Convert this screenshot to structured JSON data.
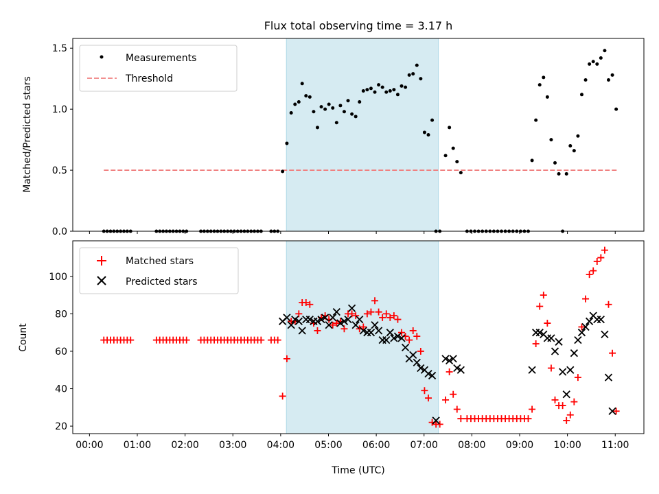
{
  "chart_data": {
    "type": "scatter",
    "title": "Flux total observing time = 3.17 h",
    "xlabel": "Time (UTC)",
    "xlim": [
      -0.35,
      11.6
    ],
    "x_ticks": [
      0,
      1,
      2,
      3,
      4,
      5,
      6,
      7,
      8,
      9,
      10,
      11
    ],
    "x_tick_labels": [
      "00:00",
      "01:00",
      "02:00",
      "03:00",
      "04:00",
      "05:00",
      "06:00",
      "07:00",
      "08:00",
      "09:00",
      "10:00",
      "11:00"
    ],
    "highlight_span": [
      4.12,
      7.3
    ],
    "colors": {
      "measurement": "#000000",
      "threshold": "#f08080",
      "matched": "#ff0000",
      "predicted": "#000000",
      "span": "#add8e6"
    },
    "top": {
      "ylabel": "Matched/Predicted stars",
      "ylim": [
        0,
        1.58
      ],
      "y_ticks": [
        0.0,
        0.5,
        1.0,
        1.5
      ],
      "y_tick_labels": [
        "0.0",
        "0.5",
        "1.0",
        "1.5"
      ],
      "legend": {
        "location": "top-left",
        "measurements_label": "Measurements",
        "threshold_label": "Threshold"
      },
      "threshold": {
        "value": 0.5,
        "x_range": [
          0.3,
          11.05
        ]
      },
      "measurements": [
        [
          0.3,
          0
        ],
        [
          0.37,
          0
        ],
        [
          0.44,
          0
        ],
        [
          0.51,
          0
        ],
        [
          0.58,
          0
        ],
        [
          0.65,
          0
        ],
        [
          0.72,
          0
        ],
        [
          0.79,
          0
        ],
        [
          0.86,
          0
        ],
        [
          1.4,
          0
        ],
        [
          1.47,
          0
        ],
        [
          1.54,
          0
        ],
        [
          1.61,
          0
        ],
        [
          1.68,
          0
        ],
        [
          1.75,
          0
        ],
        [
          1.82,
          0
        ],
        [
          1.89,
          0
        ],
        [
          1.96,
          0
        ],
        [
          2.03,
          0
        ],
        [
          2.33,
          0
        ],
        [
          2.4,
          0
        ],
        [
          2.47,
          0
        ],
        [
          2.54,
          0
        ],
        [
          2.61,
          0
        ],
        [
          2.68,
          0
        ],
        [
          2.75,
          0
        ],
        [
          2.82,
          0
        ],
        [
          2.89,
          0
        ],
        [
          2.96,
          0
        ],
        [
          3.03,
          0
        ],
        [
          3.1,
          0
        ],
        [
          3.17,
          0
        ],
        [
          3.24,
          0
        ],
        [
          3.31,
          0
        ],
        [
          3.38,
          0
        ],
        [
          3.45,
          0
        ],
        [
          3.52,
          0
        ],
        [
          3.59,
          0
        ],
        [
          3.8,
          0
        ],
        [
          3.87,
          0
        ],
        [
          3.94,
          0
        ],
        [
          4.04,
          0.49
        ],
        [
          4.13,
          0.72
        ],
        [
          4.22,
          0.97
        ],
        [
          4.3,
          1.04
        ],
        [
          4.38,
          1.06
        ],
        [
          4.45,
          1.21
        ],
        [
          4.53,
          1.11
        ],
        [
          4.61,
          1.1
        ],
        [
          4.69,
          0.98
        ],
        [
          4.77,
          0.85
        ],
        [
          4.85,
          1.02
        ],
        [
          4.93,
          1.0
        ],
        [
          5.01,
          1.04
        ],
        [
          5.09,
          1.01
        ],
        [
          5.17,
          0.89
        ],
        [
          5.25,
          1.03
        ],
        [
          5.33,
          0.98
        ],
        [
          5.41,
          1.07
        ],
        [
          5.49,
          0.96
        ],
        [
          5.57,
          0.94
        ],
        [
          5.65,
          1.06
        ],
        [
          5.73,
          1.15
        ],
        [
          5.81,
          1.16
        ],
        [
          5.89,
          1.17
        ],
        [
          5.97,
          1.14
        ],
        [
          6.05,
          1.2
        ],
        [
          6.13,
          1.18
        ],
        [
          6.21,
          1.14
        ],
        [
          6.29,
          1.15
        ],
        [
          6.37,
          1.16
        ],
        [
          6.45,
          1.12
        ],
        [
          6.53,
          1.19
        ],
        [
          6.61,
          1.18
        ],
        [
          6.69,
          1.28
        ],
        [
          6.77,
          1.29
        ],
        [
          6.85,
          1.36
        ],
        [
          6.93,
          1.25
        ],
        [
          7.01,
          0.81
        ],
        [
          7.09,
          0.79
        ],
        [
          7.17,
          0.91
        ],
        [
          7.25,
          0
        ],
        [
          7.33,
          0
        ],
        [
          7.45,
          0.62
        ],
        [
          7.53,
          0.85
        ],
        [
          7.61,
          0.68
        ],
        [
          7.69,
          0.57
        ],
        [
          7.77,
          0.48
        ],
        [
          7.9,
          0
        ],
        [
          7.98,
          0
        ],
        [
          8.06,
          0
        ],
        [
          8.14,
          0
        ],
        [
          8.22,
          0
        ],
        [
          8.3,
          0
        ],
        [
          8.38,
          0
        ],
        [
          8.46,
          0
        ],
        [
          8.54,
          0
        ],
        [
          8.62,
          0
        ],
        [
          8.7,
          0
        ],
        [
          8.78,
          0
        ],
        [
          8.86,
          0
        ],
        [
          8.94,
          0
        ],
        [
          9.02,
          0
        ],
        [
          9.1,
          0
        ],
        [
          9.18,
          0
        ],
        [
          9.26,
          0.58
        ],
        [
          9.34,
          0.91
        ],
        [
          9.42,
          1.2
        ],
        [
          9.5,
          1.26
        ],
        [
          9.58,
          1.1
        ],
        [
          9.66,
          0.75
        ],
        [
          9.74,
          0.56
        ],
        [
          9.82,
          0.47
        ],
        [
          9.9,
          0
        ],
        [
          9.98,
          0.47
        ],
        [
          10.06,
          0.7
        ],
        [
          10.14,
          0.66
        ],
        [
          10.22,
          0.78
        ],
        [
          10.3,
          1.12
        ],
        [
          10.38,
          1.24
        ],
        [
          10.46,
          1.37
        ],
        [
          10.54,
          1.39
        ],
        [
          10.62,
          1.37
        ],
        [
          10.7,
          1.42
        ],
        [
          10.78,
          1.48
        ],
        [
          10.86,
          1.24
        ],
        [
          10.94,
          1.28
        ],
        [
          11.02,
          1.0
        ]
      ]
    },
    "bottom": {
      "ylabel": "Count",
      "ylim": [
        16,
        119
      ],
      "y_ticks": [
        20,
        40,
        60,
        80,
        100
      ],
      "y_tick_labels": [
        "20",
        "40",
        "60",
        "80",
        "100"
      ],
      "legend": {
        "location": "top-left",
        "matched_label": "Matched stars",
        "predicted_label": "Predicted stars"
      },
      "matched": [
        [
          0.3,
          66
        ],
        [
          0.37,
          66
        ],
        [
          0.44,
          66
        ],
        [
          0.51,
          66
        ],
        [
          0.58,
          66
        ],
        [
          0.65,
          66
        ],
        [
          0.72,
          66
        ],
        [
          0.79,
          66
        ],
        [
          0.86,
          66
        ],
        [
          1.4,
          66
        ],
        [
          1.47,
          66
        ],
        [
          1.54,
          66
        ],
        [
          1.61,
          66
        ],
        [
          1.68,
          66
        ],
        [
          1.75,
          66
        ],
        [
          1.82,
          66
        ],
        [
          1.89,
          66
        ],
        [
          1.96,
          66
        ],
        [
          2.03,
          66
        ],
        [
          2.33,
          66
        ],
        [
          2.4,
          66
        ],
        [
          2.47,
          66
        ],
        [
          2.54,
          66
        ],
        [
          2.61,
          66
        ],
        [
          2.68,
          66
        ],
        [
          2.75,
          66
        ],
        [
          2.82,
          66
        ],
        [
          2.89,
          66
        ],
        [
          2.96,
          66
        ],
        [
          3.03,
          66
        ],
        [
          3.1,
          66
        ],
        [
          3.17,
          66
        ],
        [
          3.24,
          66
        ],
        [
          3.31,
          66
        ],
        [
          3.38,
          66
        ],
        [
          3.45,
          66
        ],
        [
          3.52,
          66
        ],
        [
          3.59,
          66
        ],
        [
          3.8,
          66
        ],
        [
          3.87,
          66
        ],
        [
          3.94,
          66
        ],
        [
          4.04,
          36
        ],
        [
          4.13,
          56
        ],
        [
          4.22,
          76
        ],
        [
          4.3,
          76
        ],
        [
          4.38,
          80
        ],
        [
          4.45,
          86
        ],
        [
          4.53,
          86
        ],
        [
          4.61,
          85
        ],
        [
          4.69,
          75
        ],
        [
          4.77,
          71
        ],
        [
          4.85,
          78
        ],
        [
          4.93,
          79
        ],
        [
          5.01,
          77
        ],
        [
          5.09,
          74
        ],
        [
          5.17,
          75
        ],
        [
          5.25,
          76
        ],
        [
          5.33,
          72
        ],
        [
          5.41,
          80
        ],
        [
          5.49,
          80
        ],
        [
          5.57,
          79
        ],
        [
          5.65,
          72
        ],
        [
          5.73,
          73
        ],
        [
          5.81,
          80
        ],
        [
          5.89,
          81
        ],
        [
          5.97,
          87
        ],
        [
          6.05,
          81
        ],
        [
          6.13,
          78
        ],
        [
          6.21,
          80
        ],
        [
          6.29,
          78
        ],
        [
          6.37,
          79
        ],
        [
          6.45,
          77
        ],
        [
          6.53,
          70
        ],
        [
          6.61,
          68
        ],
        [
          6.69,
          66
        ],
        [
          6.77,
          71
        ],
        [
          6.85,
          68
        ],
        [
          6.93,
          60
        ],
        [
          7.01,
          39
        ],
        [
          7.09,
          35
        ],
        [
          7.17,
          22
        ],
        [
          7.25,
          21
        ],
        [
          7.33,
          21
        ],
        [
          7.45,
          34
        ],
        [
          7.53,
          49
        ],
        [
          7.61,
          37
        ],
        [
          7.69,
          29
        ],
        [
          7.77,
          24
        ],
        [
          7.9,
          24
        ],
        [
          7.98,
          24
        ],
        [
          8.06,
          24
        ],
        [
          8.14,
          24
        ],
        [
          8.22,
          24
        ],
        [
          8.3,
          24
        ],
        [
          8.38,
          24
        ],
        [
          8.46,
          24
        ],
        [
          8.54,
          24
        ],
        [
          8.62,
          24
        ],
        [
          8.7,
          24
        ],
        [
          8.78,
          24
        ],
        [
          8.86,
          24
        ],
        [
          8.94,
          24
        ],
        [
          9.02,
          24
        ],
        [
          9.1,
          24
        ],
        [
          9.18,
          24
        ],
        [
          9.26,
          29
        ],
        [
          9.34,
          64
        ],
        [
          9.42,
          84
        ],
        [
          9.5,
          90
        ],
        [
          9.58,
          75
        ],
        [
          9.66,
          51
        ],
        [
          9.74,
          34
        ],
        [
          9.82,
          31
        ],
        [
          9.9,
          31
        ],
        [
          9.98,
          23
        ],
        [
          10.06,
          26
        ],
        [
          10.14,
          33
        ],
        [
          10.22,
          46
        ],
        [
          10.3,
          73
        ],
        [
          10.38,
          88
        ],
        [
          10.46,
          101
        ],
        [
          10.54,
          103
        ],
        [
          10.62,
          108
        ],
        [
          10.7,
          110
        ],
        [
          10.78,
          114
        ],
        [
          10.86,
          85
        ],
        [
          10.94,
          59
        ],
        [
          11.02,
          28
        ]
      ],
      "predicted": [
        [
          4.04,
          76
        ],
        [
          4.13,
          78
        ],
        [
          4.22,
          74
        ],
        [
          4.3,
          77
        ],
        [
          4.38,
          76
        ],
        [
          4.45,
          71
        ],
        [
          4.53,
          77
        ],
        [
          4.61,
          77
        ],
        [
          4.69,
          76
        ],
        [
          4.77,
          76
        ],
        [
          4.85,
          77
        ],
        [
          4.93,
          78
        ],
        [
          5.01,
          74
        ],
        [
          5.09,
          78
        ],
        [
          5.17,
          81
        ],
        [
          5.25,
          75
        ],
        [
          5.33,
          76
        ],
        [
          5.41,
          77
        ],
        [
          5.49,
          83
        ],
        [
          5.57,
          74
        ],
        [
          5.65,
          77
        ],
        [
          5.73,
          71
        ],
        [
          5.81,
          70
        ],
        [
          5.89,
          70
        ],
        [
          5.97,
          74
        ],
        [
          6.05,
          71
        ],
        [
          6.13,
          66
        ],
        [
          6.21,
          66
        ],
        [
          6.29,
          70
        ],
        [
          6.37,
          67
        ],
        [
          6.45,
          68
        ],
        [
          6.53,
          67
        ],
        [
          6.61,
          62
        ],
        [
          6.69,
          56
        ],
        [
          6.77,
          58
        ],
        [
          6.85,
          54
        ],
        [
          6.93,
          51
        ],
        [
          7.01,
          50
        ],
        [
          7.09,
          48
        ],
        [
          7.17,
          47
        ],
        [
          7.25,
          23
        ],
        [
          7.45,
          56
        ],
        [
          7.53,
          55
        ],
        [
          7.61,
          56
        ],
        [
          7.69,
          51
        ],
        [
          7.77,
          50
        ],
        [
          9.26,
          50
        ],
        [
          9.34,
          70
        ],
        [
          9.42,
          70
        ],
        [
          9.5,
          69
        ],
        [
          9.58,
          67
        ],
        [
          9.66,
          67
        ],
        [
          9.74,
          60
        ],
        [
          9.82,
          65
        ],
        [
          9.9,
          49
        ],
        [
          9.98,
          37
        ],
        [
          10.06,
          50
        ],
        [
          10.14,
          59
        ],
        [
          10.22,
          66
        ],
        [
          10.3,
          70
        ],
        [
          10.38,
          73
        ],
        [
          10.46,
          76
        ],
        [
          10.54,
          79
        ],
        [
          10.62,
          77
        ],
        [
          10.7,
          77
        ],
        [
          10.78,
          69
        ],
        [
          10.86,
          46
        ],
        [
          10.94,
          28
        ]
      ]
    }
  }
}
